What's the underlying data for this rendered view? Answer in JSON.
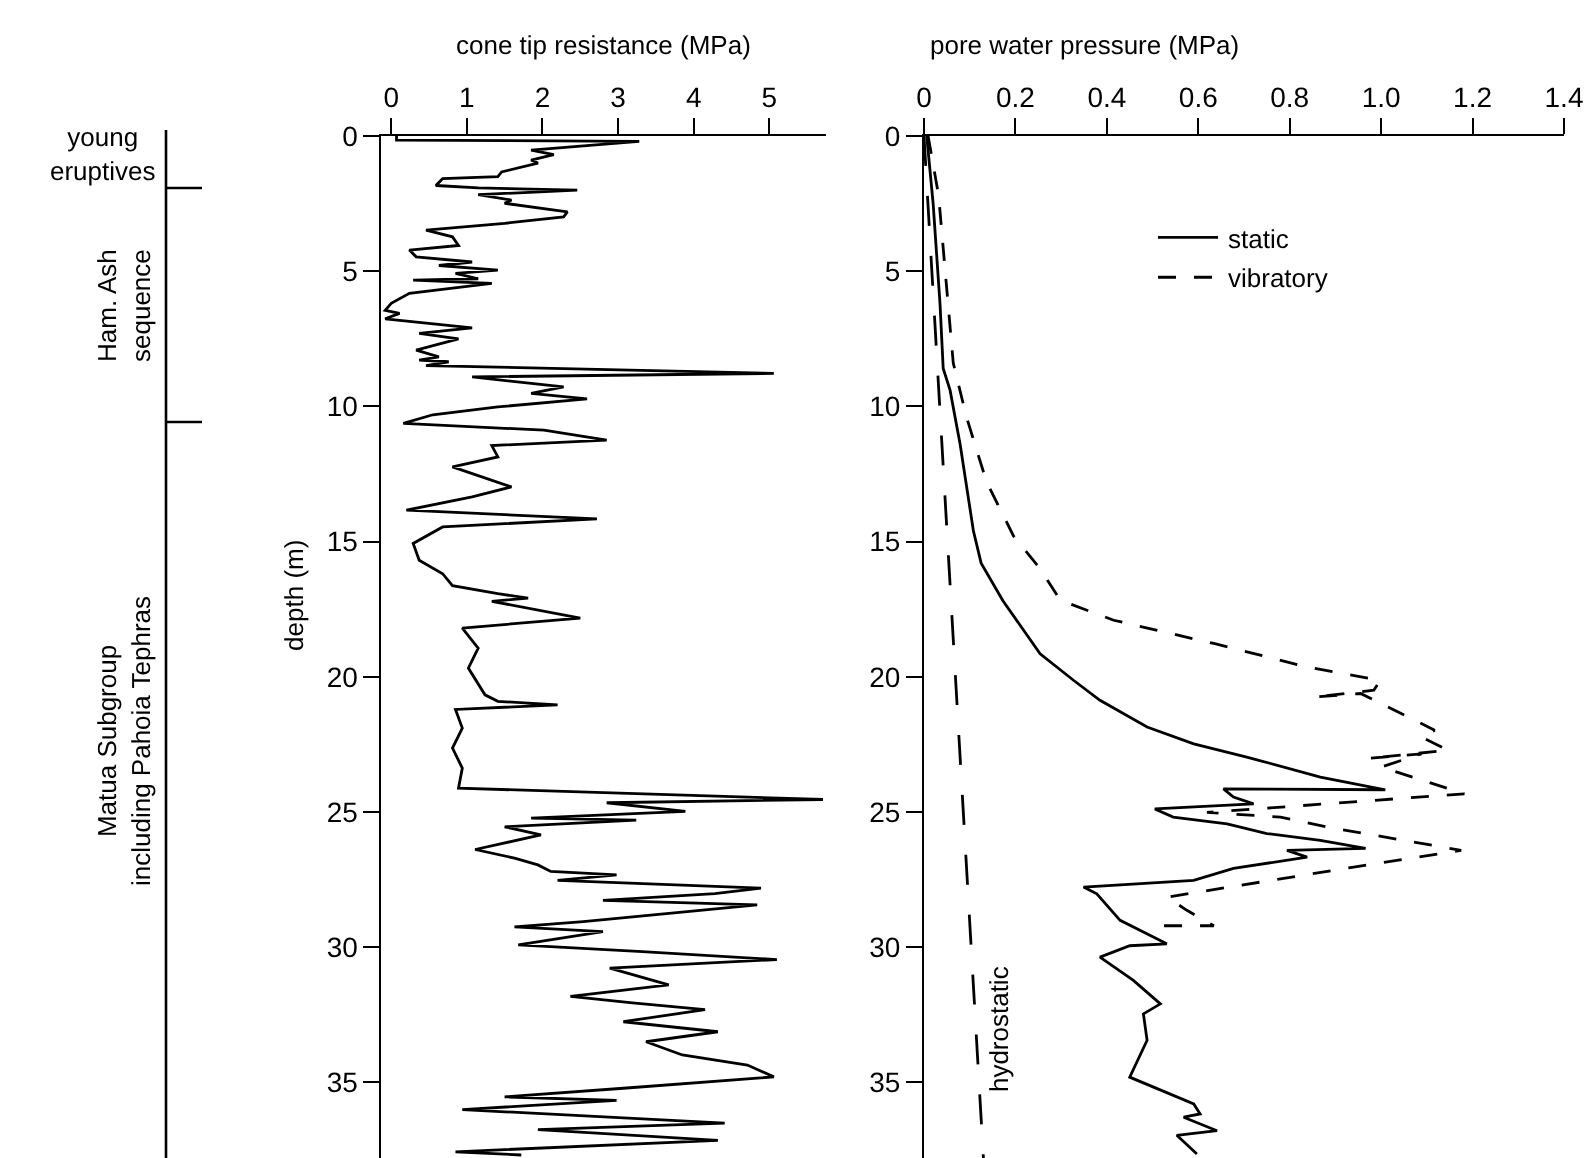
{
  "chart_data": [
    {
      "type": "line",
      "orientation": "horizontal",
      "xlabel": "cone tip resistance (MPa)",
      "ylabel": "depth (m)",
      "xlim": [
        -0.13,
        5.75
      ],
      "xticks": [
        0,
        1,
        2,
        3,
        4,
        5
      ],
      "ylim": [
        37.8,
        0
      ],
      "yticks": [
        0,
        5,
        10,
        15,
        20,
        25,
        30,
        35
      ],
      "annotations": [
        "young\neruptives",
        "Ham. Ash\nsequence",
        "Matua Subgroup\nincluding Pahoia Tephras"
      ],
      "series": [
        {
          "color": "#000000",
          "line_style": "solid",
          "x": [
            0,
            0.15,
            0.2,
            0.52,
            0.69,
            0.89,
            1.0,
            1.33,
            1.5,
            1.58,
            1.83,
            1.92,
            2.0,
            2.17,
            2.37,
            2.49,
            2.81,
            2.99,
            3.23,
            3.48,
            3.73,
            4.05,
            4.22,
            4.47,
            4.66,
            4.79,
            4.96,
            5.08,
            5.28,
            5.33,
            5.45,
            5.82,
            6.19,
            6.45,
            6.56,
            6.76,
            7.1,
            7.3,
            7.5,
            7.92,
            8.17,
            8.29,
            8.35,
            8.49,
            8.78,
            8.91,
            9.28,
            9.52,
            9.72,
            10.02,
            10.31,
            10.63,
            10.88,
            11.25,
            11.45,
            11.87,
            12.24,
            12.98,
            13.35,
            13.84,
            14.16,
            14.46,
            15.07,
            15.69,
            16.19,
            16.63,
            16.93,
            17.09,
            17.21,
            17.83,
            18.2,
            18.94,
            19.68,
            20.67,
            20.91,
            21.04,
            21.21,
            21.9,
            22.64,
            23.38,
            24.12,
            24.54,
            24.66,
            24.98,
            25.23,
            25.3,
            25.55,
            25.85,
            26.39,
            26.71,
            26.96,
            27.2,
            27.33,
            27.53,
            27.82,
            28.02,
            28.27,
            28.44,
            29.06,
            29.25,
            29.43,
            29.92,
            30.17,
            30.46,
            30.78,
            31.4,
            31.82,
            32.06,
            32.31,
            32.76,
            33.13,
            33.5,
            33.99,
            34.36,
            34.8,
            35.22,
            35.54,
            35.67,
            36.01,
            36.51,
            36.75,
            37.15,
            37.57,
            37.69
          ],
          "values": [
            0.07,
            0.07,
            3.28,
            1.85,
            2.15,
            1.85,
            1.94,
            1.46,
            1.41,
            0.68,
            0.59,
            1.15,
            2.46,
            1.15,
            1.59,
            1.5,
            2.33,
            2.28,
            1.5,
            0.46,
            0.81,
            0.89,
            0.24,
            0.33,
            1.07,
            0.63,
            1.41,
            0.85,
            1.15,
            0.29,
            1.33,
            0.24,
            0.0,
            -0.08,
            0.11,
            -0.08,
            1.07,
            0.37,
            0.89,
            0.33,
            0.63,
            0.37,
            0.76,
            0.46,
            5.06,
            1.07,
            2.28,
            1.85,
            2.59,
            1.41,
            0.55,
            0.16,
            2.02,
            2.85,
            1.33,
            1.41,
            0.81,
            1.59,
            1.07,
            0.2,
            2.72,
            0.68,
            0.29,
            0.37,
            0.68,
            0.81,
            1.41,
            1.81,
            1.33,
            2.5,
            0.94,
            1.15,
            1.02,
            1.24,
            1.41,
            2.2,
            0.85,
            0.94,
            0.81,
            0.94,
            0.89,
            5.71,
            2.85,
            3.89,
            1.85,
            3.24,
            1.5,
            1.98,
            1.11,
            1.63,
            1.94,
            2.11,
            2.98,
            2.2,
            4.89,
            4.28,
            2.8,
            4.84,
            2.54,
            1.63,
            2.8,
            1.68,
            3.32,
            5.1,
            2.89,
            3.67,
            2.37,
            3.19,
            4.15,
            3.07,
            4.32,
            3.37,
            3.85,
            4.71,
            5.06,
            3.07,
            1.5,
            2.98,
            0.94,
            4.41,
            1.94,
            4.32,
            0.85,
            1.72
          ]
        }
      ]
    },
    {
      "type": "line",
      "orientation": "horizontal",
      "xlabel": "pore water pressure (MPa)",
      "legend": "top",
      "xlim": [
        0,
        1.4
      ],
      "xticks": [
        0,
        0.2,
        0.4,
        0.6,
        0.8,
        {
          "value": 1,
          "label": "1.0"
        },
        1.2,
        1.4
      ],
      "ylim": [
        37.8,
        0
      ],
      "yticks": [
        0,
        5,
        10,
        15,
        20,
        25,
        30,
        35
      ],
      "annotations": [
        {
          "text": "hydrostatic",
          "x": 0.12,
          "y": 33
        }
      ],
      "series": [
        {
          "name": "static",
          "color": "#000000",
          "line_style": "solid",
          "x": [
            0,
            2.5,
            6.2,
            8.6,
            9.4,
            11.4,
            14.6,
            15.8,
            17.2,
            19.15,
            20.13,
            20.87,
            21.86,
            22.48,
            22.97,
            23.71,
            24.18,
            24.15,
            24.45,
            24.7,
            24.89,
            25.19,
            25.44,
            25.8,
            26.05,
            26.35,
            26.42,
            26.67,
            27.09,
            27.53,
            27.78,
            28.03,
            29.01,
            29.88,
            29.95,
            30.37,
            31.23,
            32.1,
            32.47,
            33.45,
            34.81,
            35.8,
            36.17,
            36.29,
            36.79,
            36.96,
            37.65
          ],
          "values": [
            0.006,
            0.02,
            0.035,
            0.042,
            0.057,
            0.079,
            0.108,
            0.125,
            0.173,
            0.254,
            0.327,
            0.385,
            0.488,
            0.59,
            0.706,
            0.867,
            1.009,
            0.655,
            0.677,
            0.721,
            0.505,
            0.545,
            0.663,
            0.75,
            0.867,
            0.966,
            0.794,
            0.838,
            0.677,
            0.59,
            0.349,
            0.378,
            0.429,
            0.531,
            0.45,
            0.385,
            0.458,
            0.517,
            0.48,
            0.488,
            0.45,
            0.59,
            0.604,
            0.568,
            0.641,
            0.553,
            0.597
          ]
        },
        {
          "name": "vibratory",
          "color": "#000000",
          "line_style": "dashed",
          "x": [
            0,
            2.2,
            5.7,
            8.4,
            10.4,
            12.8,
            14.8,
            16.0,
            17.17,
            17.91,
            18.77,
            19.64,
            20.13,
            20.5,
            20.75,
            20.62,
            21.73,
            21.98,
            22.23,
            22.72,
            23.02,
            22.85,
            23.34,
            24.33,
            25.02,
            25.19,
            25.56,
            26.42,
            27.04,
            28.15,
            28.64,
            29.21,
            29.21
          ],
          "values": [
            0.009,
            0.032,
            0.05,
            0.064,
            0.093,
            0.137,
            0.196,
            0.254,
            0.298,
            0.415,
            0.634,
            0.838,
            0.998,
            0.984,
            0.853,
            0.955,
            1.088,
            1.117,
            1.088,
            1.146,
            0.971,
            1.088,
            1.0,
            1.182,
            0.619,
            0.78,
            0.882,
            1.175,
            0.94,
            0.532,
            0.575,
            0.634,
            0.517
          ]
        },
        {
          "color": "#000000",
          "line_style": "longdash",
          "x": [
            0,
            37.8
          ],
          "values": [
            0,
            0.13
          ]
        }
      ]
    }
  ]
}
